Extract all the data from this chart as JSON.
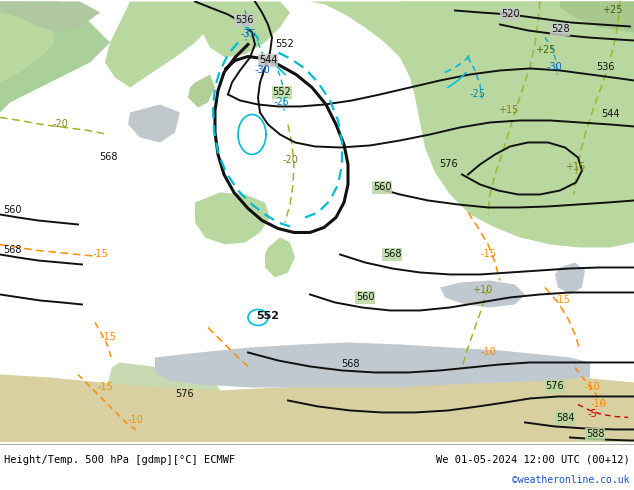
{
  "title_left": "Height/Temp. 500 hPa [gdmp][°C] ECMWF",
  "title_right": "We 01-05-2024 12:00 UTC (00+12)",
  "credit": "©weatheronline.co.uk",
  "fig_width": 6.34,
  "fig_height": 4.9,
  "dpi": 100
}
